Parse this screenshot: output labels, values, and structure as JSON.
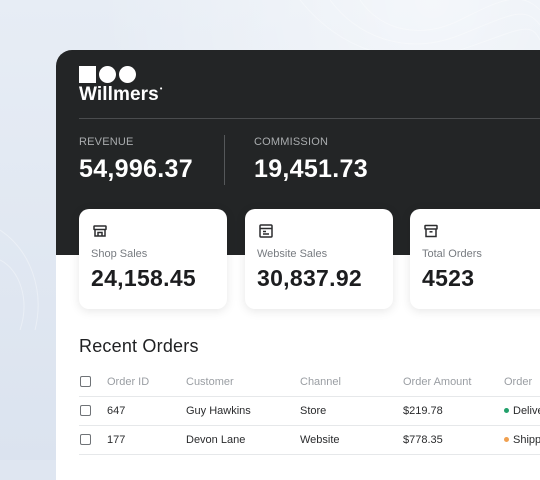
{
  "brand": {
    "name": "Willmers",
    "mark": "•"
  },
  "summary": {
    "revenue_label": "REVENUE",
    "revenue_value": "54,996.37",
    "commission_label": "COMMISSION",
    "commission_value": "19,451.73"
  },
  "stats": [
    {
      "icon": "storefront-icon",
      "label": "Shop Sales",
      "value": "24,158.45"
    },
    {
      "icon": "browser-window-icon",
      "label": "Website Sales",
      "value": "30,837.92"
    },
    {
      "icon": "archive-box-icon",
      "label": "Total Orders",
      "value": "4523"
    }
  ],
  "recent_orders": {
    "title": "Recent Orders",
    "columns": [
      "Order ID",
      "Customer",
      "Channel",
      "Order Amount",
      "Order"
    ],
    "rows": [
      {
        "id": "647",
        "customer": "Guy Hawkins",
        "channel": "Store",
        "amount": "$219.78",
        "status": "Delive",
        "status_color": "#22a06b"
      },
      {
        "id": "177",
        "customer": "Devon Lane",
        "channel": "Website",
        "amount": "$778.35",
        "status": "Shipp",
        "status_color": "#f0a050"
      }
    ]
  },
  "colors": {
    "header_bg": "#232526",
    "page_bg": "#dfe6f1"
  }
}
